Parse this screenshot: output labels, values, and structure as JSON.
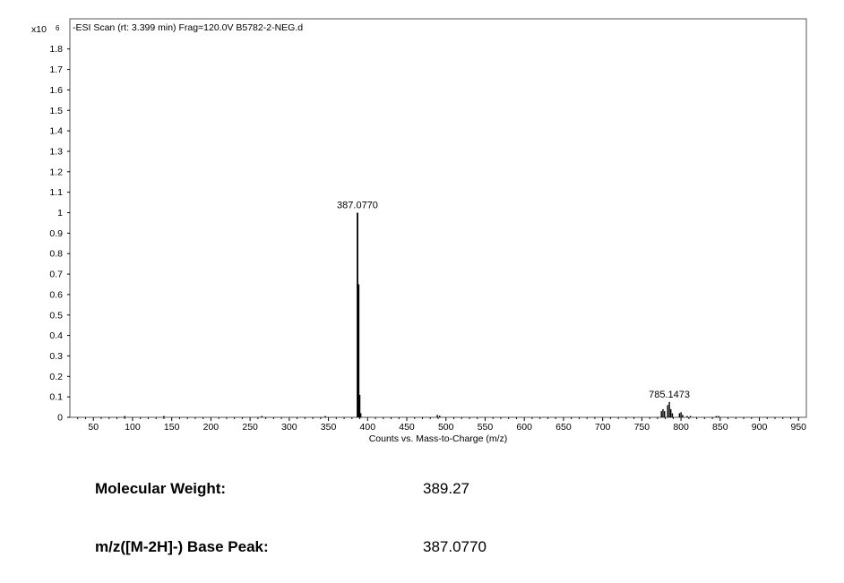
{
  "chart_data": {
    "type": "bar",
    "title": "-ESI Scan (rt: 3.399 min) Frag=120.0V B5782-2-NEG.d",
    "y_scale_label": "x10",
    "y_scale_exponent": "6",
    "xlabel": "Counts vs. Mass-to-Charge (m/z)",
    "ylabel": "",
    "xlim": [
      20,
      960
    ],
    "ylim": [
      0,
      1.9
    ],
    "x_ticks": [
      50,
      100,
      150,
      200,
      250,
      300,
      350,
      400,
      450,
      500,
      550,
      600,
      650,
      700,
      750,
      800,
      850,
      900,
      950
    ],
    "y_ticks": [
      "0",
      "0.1",
      "0.2",
      "0.3",
      "0.4",
      "0.5",
      "0.6",
      "0.7",
      "0.8",
      "0.9",
      "1",
      "1.1",
      "1.2",
      "1.3",
      "1.4",
      "1.5",
      "1.6",
      "1.7",
      "1.8"
    ],
    "grid": false,
    "series": [
      {
        "peaks": [
          {
            "x": 90,
            "y": 0.003
          },
          {
            "x": 140,
            "y": 0.006
          },
          {
            "x": 265,
            "y": 0.005
          },
          {
            "x": 346,
            "y": 0.004
          },
          {
            "x": 387.077,
            "y": 1.0
          },
          {
            "x": 388.5,
            "y": 0.65
          },
          {
            "x": 390,
            "y": 0.11
          },
          {
            "x": 391.3,
            "y": 0.02
          },
          {
            "x": 489,
            "y": 0.012
          },
          {
            "x": 492,
            "y": 0.008
          },
          {
            "x": 775,
            "y": 0.03
          },
          {
            "x": 777,
            "y": 0.04
          },
          {
            "x": 779,
            "y": 0.03
          },
          {
            "x": 783,
            "y": 0.06
          },
          {
            "x": 785.1473,
            "y": 0.075
          },
          {
            "x": 787,
            "y": 0.04
          },
          {
            "x": 789,
            "y": 0.02
          },
          {
            "x": 798,
            "y": 0.02
          },
          {
            "x": 800,
            "y": 0.025
          },
          {
            "x": 802,
            "y": 0.012
          },
          {
            "x": 808,
            "y": 0.006
          },
          {
            "x": 812,
            "y": 0.004
          },
          {
            "x": 845,
            "y": 0.005
          },
          {
            "x": 848,
            "y": 0.004
          }
        ]
      }
    ],
    "annotations": [
      {
        "text": "387.0770",
        "x": 387.077,
        "y": 1.0
      },
      {
        "text": "785.1473",
        "x": 785.1473,
        "y": 0.075
      }
    ]
  },
  "info": {
    "mw_label": "Molecular Weight:",
    "mw_value": "389.27",
    "base_peak_label": "m/z([M-2H]-) Base Peak:",
    "base_peak_value": "387.0770"
  }
}
